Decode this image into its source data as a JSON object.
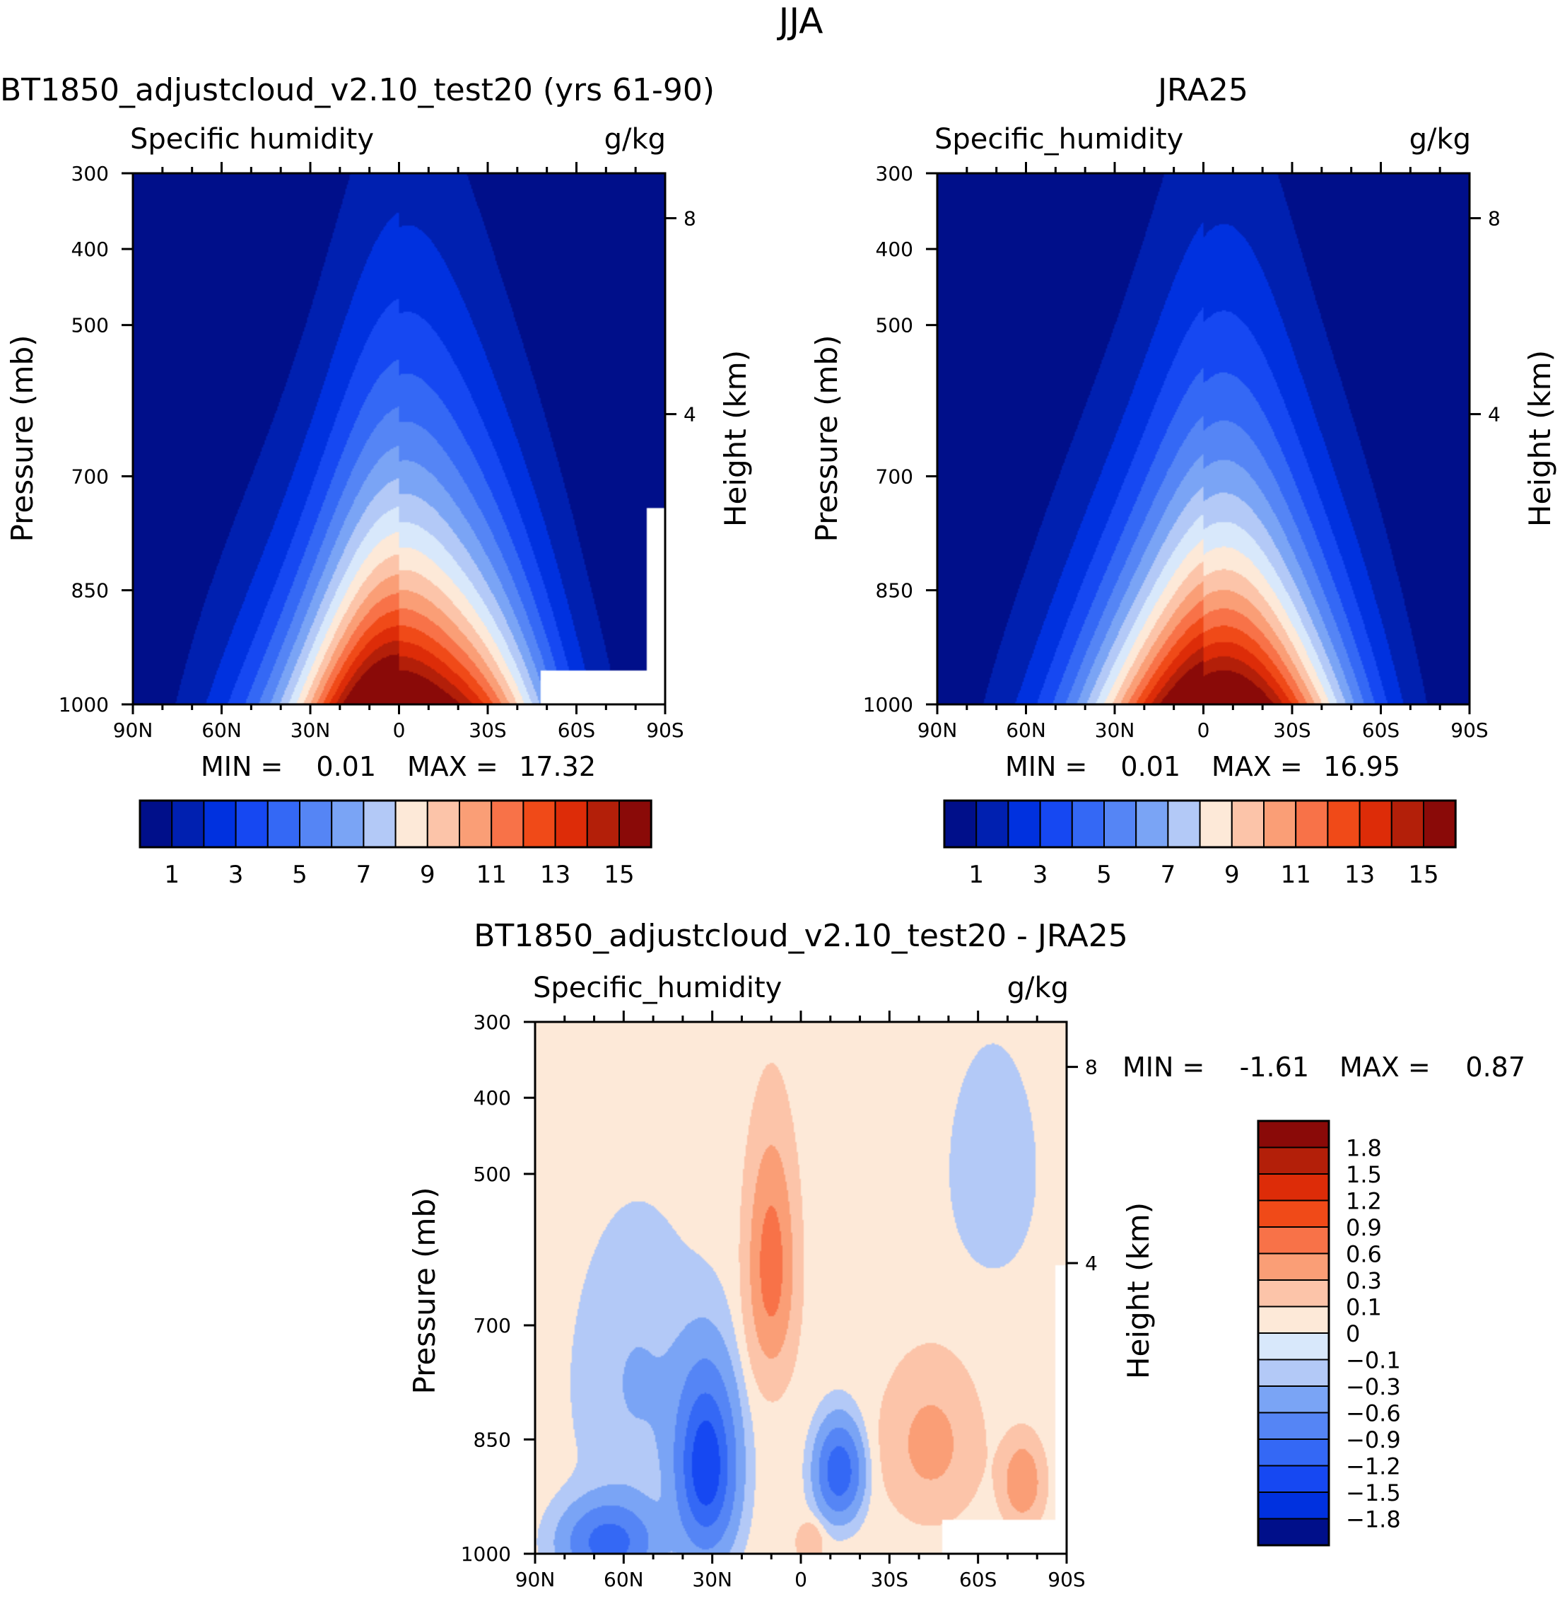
{
  "figure_title": "JJA",
  "chart_data": [
    {
      "type": "heatmap",
      "panel": "model",
      "title": "BT1850_adjustcloud_v2.10_test20 (yrs 61-90)",
      "variable": "Specific humidity",
      "units": "g/kg",
      "xlabel": "",
      "ylabel": "Pressure (mb)",
      "y2label": "Height (km)",
      "x_ticks": [
        "90N",
        "60N",
        "30N",
        "0",
        "30S",
        "60S",
        "90S"
      ],
      "y_ticks": [
        "300",
        "400",
        "500",
        "700",
        "850",
        "1000"
      ],
      "y2_ticks": [
        "8",
        "4"
      ],
      "stats": {
        "min_label": "MIN =",
        "min": "0.01",
        "max_label": "MAX =",
        "max": "17.32"
      },
      "colorbar_labels": [
        "1",
        "3",
        "5",
        "7",
        "9",
        "11",
        "13",
        "15"
      ],
      "peak_value": 17.3,
      "peak_lat": -5,
      "missing_below_mb": 925,
      "missing_lat_south": -48
    },
    {
      "type": "heatmap",
      "panel": "obs",
      "title": "JRA25",
      "variable": "Specific_humidity",
      "units": "g/kg",
      "xlabel": "",
      "ylabel": "Pressure (mb)",
      "y2label": "Height (km)",
      "x_ticks": [
        "90N",
        "60N",
        "30N",
        "0",
        "30S",
        "60S",
        "90S"
      ],
      "y_ticks": [
        "300",
        "400",
        "500",
        "700",
        "850",
        "1000"
      ],
      "y2_ticks": [
        "8",
        "4"
      ],
      "stats": {
        "min_label": "MIN =",
        "min": "0.01",
        "max_label": "MAX =",
        "max": "16.95"
      },
      "colorbar_labels": [
        "1",
        "3",
        "5",
        "7",
        "9",
        "11",
        "13",
        "15"
      ],
      "peak_value": 17.0,
      "peak_lat": -7
    },
    {
      "type": "heatmap",
      "panel": "diff",
      "title": "BT1850_adjustcloud_v2.10_test20 - JRA25",
      "variable": "Specific_humidity",
      "units": "g/kg",
      "xlabel": "",
      "ylabel": "Pressure (mb)",
      "y2label": "Height (km)",
      "x_ticks": [
        "90N",
        "60N",
        "30N",
        "0",
        "30S",
        "60S",
        "90S"
      ],
      "y_ticks": [
        "300",
        "400",
        "500",
        "700",
        "850",
        "1000"
      ],
      "y2_ticks": [
        "8",
        "4"
      ],
      "stats": {
        "min_label": "MIN =",
        "min": "-1.61",
        "max_label": "MAX =",
        "max": "0.87"
      },
      "colorbar_labels": [
        "1.8",
        "1.5",
        "1.2",
        "0.9",
        "0.6",
        "0.3",
        "0.1",
        "0",
        "-0.1",
        "-0.3",
        "-0.6",
        "-0.9",
        "-1.2",
        "-1.5",
        "-1.8"
      ],
      "range": [
        -1.61,
        0.87
      ]
    }
  ],
  "colors": {
    "humidity_scale": [
      "#000f8a",
      "#0020b0",
      "#0031df",
      "#1648f2",
      "#3468f5",
      "#5585f5",
      "#7aa4f5",
      "#b3c9f7",
      "#d8e8fb",
      "#fde9d8",
      "#fcc4a9",
      "#fa9e76",
      "#f87248",
      "#f04a18",
      "#dd2c08",
      "#b31f09",
      "#8a0a08"
    ],
    "diff_scale": [
      "#000f8a",
      "#0020b0",
      "#0031df",
      "#1648f2",
      "#3468f5",
      "#5585f5",
      "#7aa4f5",
      "#b3c9f7",
      "#d8e8fb",
      "#fde9d8",
      "#fcc4a9",
      "#fa9e76",
      "#f87248",
      "#f04a18",
      "#dd2c08",
      "#b31f09",
      "#8a0a08"
    ]
  }
}
